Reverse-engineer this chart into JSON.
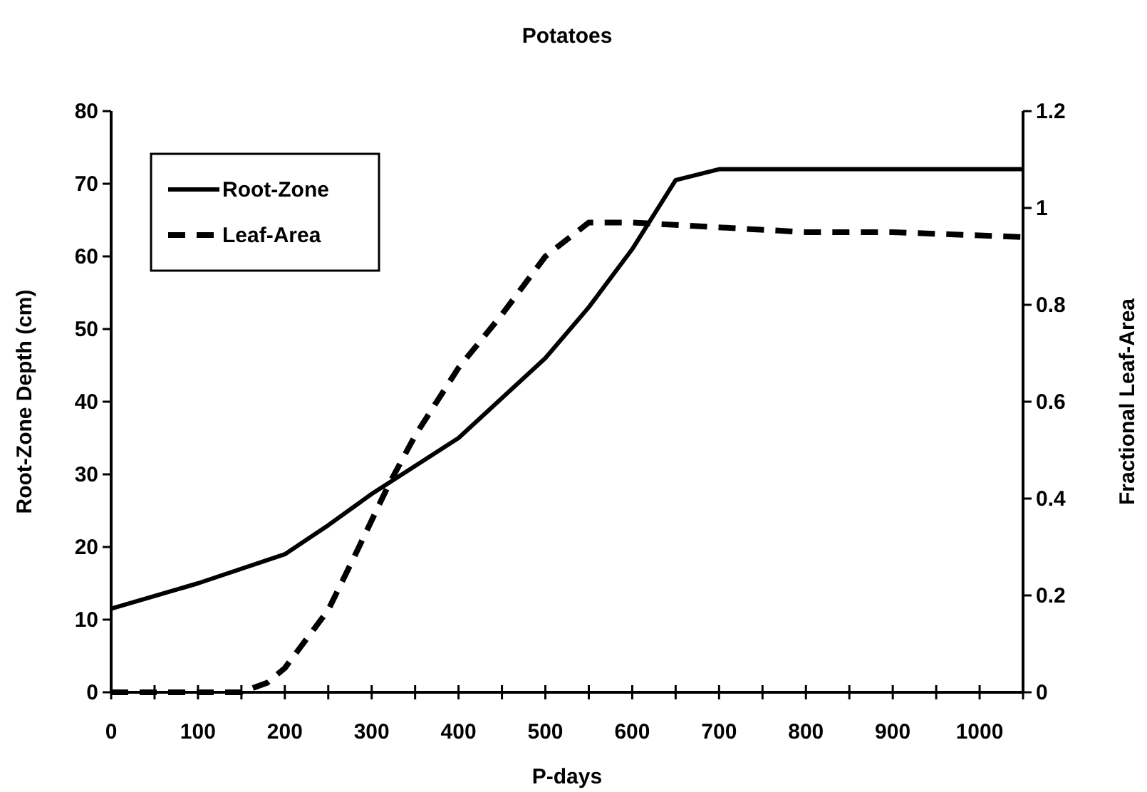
{
  "chart_data": {
    "type": "line",
    "title": "Potatoes",
    "xlabel": "P-days",
    "ylabel": "Root-Zone Depth (cm)",
    "y2label": "Fractional Leaf-Area",
    "xlim": [
      0,
      1050
    ],
    "xticks": [
      0,
      {
        "value": 50,
        "label": null
      },
      100,
      {
        "value": 150,
        "label": null
      },
      200,
      {
        "value": 250,
        "label": null
      },
      300,
      {
        "value": 350,
        "label": null
      },
      400,
      {
        "value": 450,
        "label": null
      },
      500,
      {
        "value": 550,
        "label": null
      },
      600,
      {
        "value": 650,
        "label": null
      },
      700,
      {
        "value": 750,
        "label": null
      },
      800,
      {
        "value": 850,
        "label": null
      },
      900,
      {
        "value": 950,
        "label": null
      },
      1000,
      {
        "value": 1050,
        "label": null
      }
    ],
    "ylim": [
      0,
      80
    ],
    "yticks": [
      0,
      10,
      20,
      30,
      40,
      50,
      60,
      70,
      80
    ],
    "y2lim": [
      0,
      1.2
    ],
    "y2ticks": [
      0,
      0.2,
      0.4,
      0.6,
      0.8,
      1,
      1.2
    ],
    "legend": "top left",
    "grid": false,
    "series": [
      {
        "name": "Root-Zone",
        "color": "#000000",
        "line_style": "solid",
        "x": [
          0,
          100,
          200,
          250,
          300,
          400,
          500,
          550,
          600,
          650,
          700,
          1050
        ],
        "values": [
          11.5,
          15,
          19,
          23,
          27.3,
          35,
          46,
          53,
          61,
          70.5,
          72,
          72
        ]
      },
      {
        "name": "Leaf-Area",
        "color": "#000000",
        "line_style": "dashed",
        "axis": "y2",
        "x": [
          0,
          150,
          180,
          200,
          250,
          280,
          320,
          350,
          400,
          450,
          500,
          550,
          600,
          700,
          800,
          900,
          1050
        ],
        "values": [
          0,
          0,
          0.02,
          0.05,
          0.17,
          0.28,
          0.43,
          0.53,
          0.67,
          0.78,
          0.9,
          0.97,
          0.97,
          0.96,
          0.95,
          0.95,
          0.94
        ]
      }
    ]
  }
}
